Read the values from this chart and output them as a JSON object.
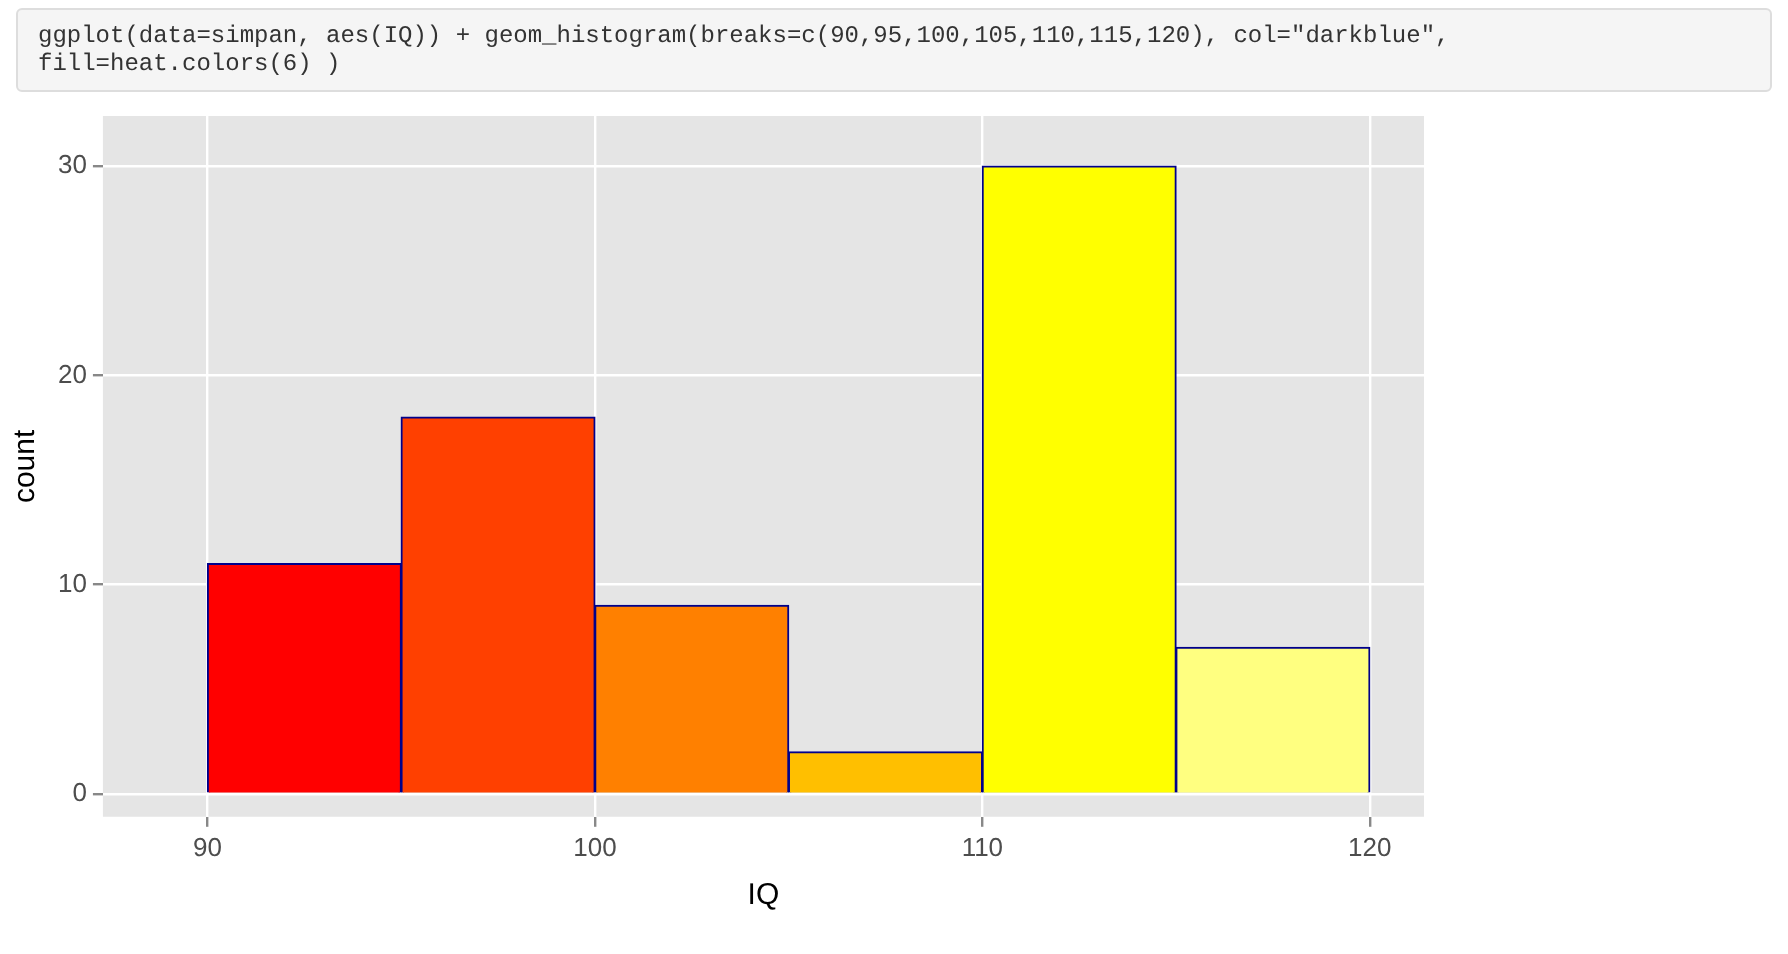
{
  "chart_data": {
    "type": "histogram",
    "annotations": [
      "ggplot(data=simpan, aes(IQ)) + geom_histogram(breaks=c(90,95,100,105,110,115,120), col=\"darkblue\",\nfill=heat.colors(6) )"
    ],
    "bins": [
      90,
      95,
      100,
      105,
      110,
      115,
      120
    ],
    "values": [
      11,
      18,
      9,
      2,
      30,
      7
    ],
    "colors": [
      "#ff0000",
      "#ff4000",
      "#ff8000",
      "#ffbf00",
      "#ffff00",
      "#ffff80"
    ],
    "xlabel": "IQ",
    "ylabel": "count",
    "xlim": [
      87.3,
      121.4
    ],
    "xticks": [
      90,
      100,
      110,
      120
    ],
    "ylim": [
      -1.1,
      32.4
    ],
    "yticks": [
      0,
      10,
      20,
      30
    ],
    "grid": true,
    "legend": false
  }
}
